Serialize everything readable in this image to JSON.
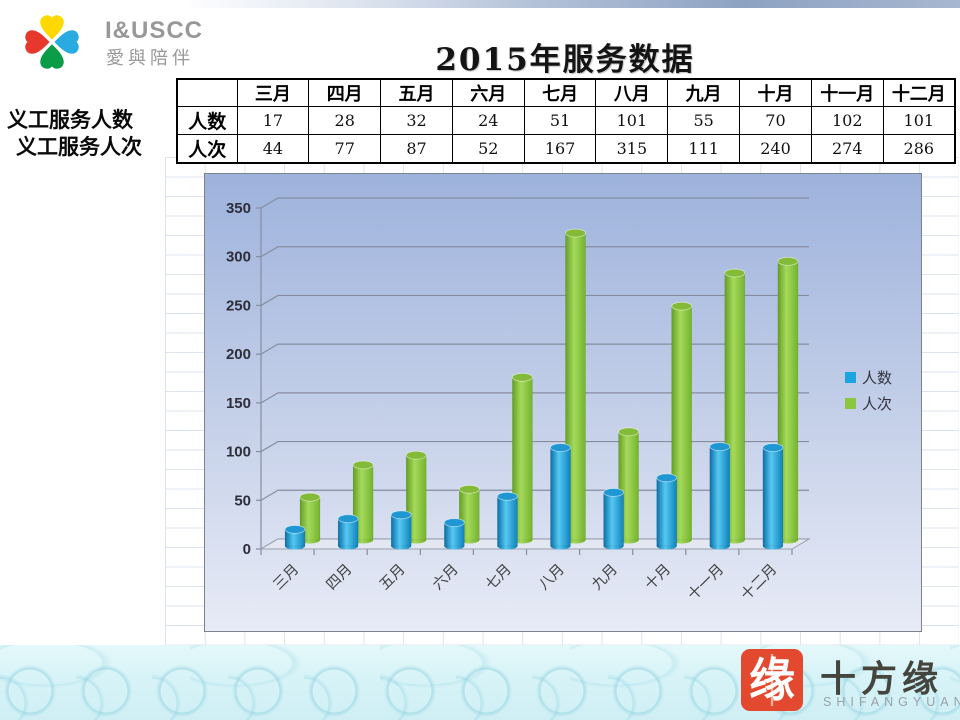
{
  "logo": {
    "latin": "I&USCC",
    "cn": "愛與陪伴",
    "petal_colors": {
      "top": "#FFD800",
      "right": "#29ABE2",
      "bottom": "#0C9B46",
      "left": "#E8382D"
    }
  },
  "sidebar": {
    "line1": "义工服务人数",
    "line2": "义工服务人次"
  },
  "title": "2015年服务数据",
  "table": {
    "corner": "",
    "columns": [
      "三月",
      "四月",
      "五月",
      "六月",
      "七月",
      "八月",
      "九月",
      "十月",
      "十一月",
      "十二月"
    ],
    "rows": [
      {
        "label": "人数",
        "values": [
          17,
          28,
          32,
          24,
          51,
          101,
          55,
          70,
          102,
          101
        ]
      },
      {
        "label": "人次",
        "values": [
          44,
          77,
          87,
          52,
          167,
          315,
          111,
          240,
          274,
          286
        ]
      }
    ]
  },
  "chart_data": {
    "type": "bar",
    "style": "3d-cylinder",
    "title": "",
    "categories": [
      "三月",
      "四月",
      "五月",
      "六月",
      "七月",
      "八月",
      "九月",
      "十月",
      "十一月",
      "十二月"
    ],
    "series": [
      {
        "name": "人数",
        "color": "#1BA5E0",
        "gradient": [
          "#0a6fa8",
          "#56c8f1",
          "#0e82bd"
        ],
        "cap": "#1f97d2",
        "values": [
          17,
          28,
          32,
          24,
          51,
          101,
          55,
          70,
          102,
          101
        ]
      },
      {
        "name": "人次",
        "color": "#8CC63F",
        "gradient": [
          "#649f22",
          "#a5d95c",
          "#74b42c"
        ],
        "cap": "#83ba38",
        "values": [
          44,
          77,
          87,
          52,
          167,
          315,
          111,
          240,
          274,
          286
        ]
      }
    ],
    "ylim": [
      0,
      350
    ],
    "grid_step": 50,
    "legend_position": "right-inside",
    "background": {
      "top": "#9db2dc",
      "mid": "#c6d1e9",
      "bottom": "#e7ebf6"
    },
    "gridline_color": "#868da0",
    "tick_label_color": "#2e2e3a",
    "category_label_color": "#3f3f3f"
  },
  "footer": {
    "seal_char": "缘",
    "seal_color": "#e2492f",
    "brand_cn": "十方缘",
    "brand_en": "SHIFANGYUAN"
  }
}
